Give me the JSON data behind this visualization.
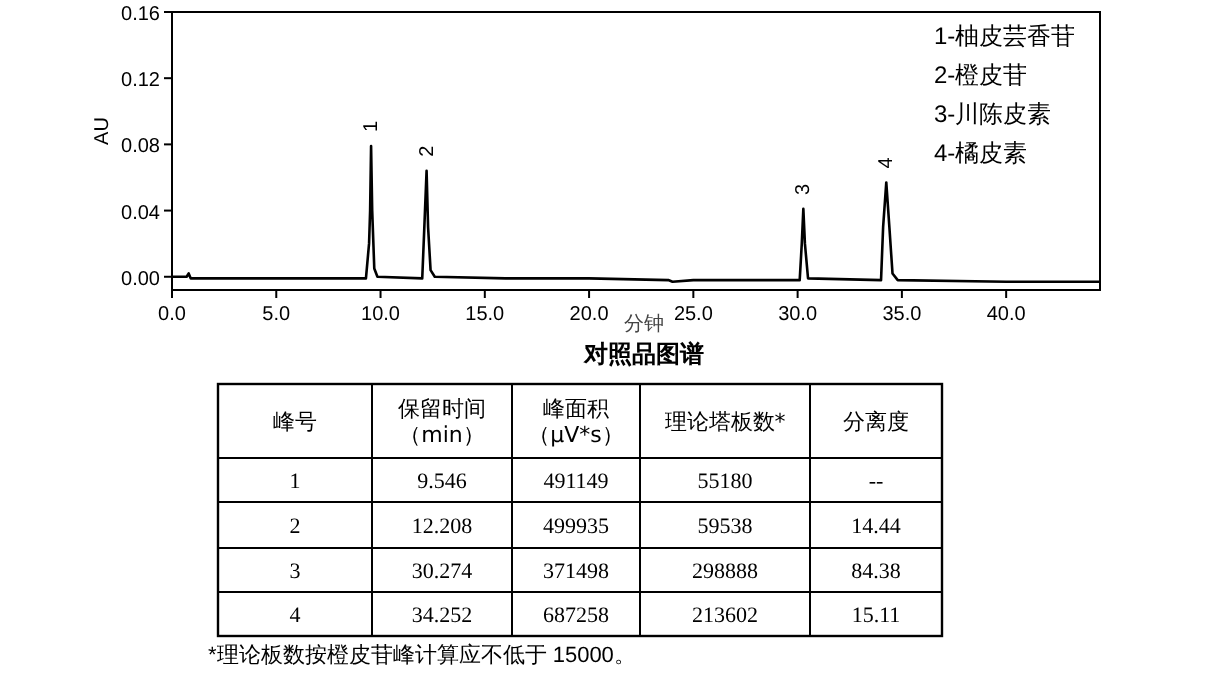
{
  "chart_data": {
    "type": "line",
    "title": "对照品图谱",
    "xlabel": "分钟",
    "ylabel": "AU",
    "x": [
      0,
      0.7,
      0.8,
      0.9,
      5,
      9.3,
      9.45,
      9.5,
      9.546,
      9.6,
      9.7,
      9.85,
      12.0,
      12.1,
      12.208,
      12.28,
      12.4,
      12.6,
      16,
      16.3,
      20,
      23.8,
      24.0,
      25,
      30.1,
      30.2,
      30.274,
      30.35,
      30.5,
      34.0,
      34.1,
      34.252,
      34.4,
      34.55,
      34.8,
      40,
      41,
      44.5
    ],
    "values": [
      0,
      0,
      0.002,
      -0.001,
      -0.001,
      -0.001,
      0.02,
      0.04,
      0.079,
      0.04,
      0.005,
      0,
      -0.001,
      0.03,
      0.064,
      0.03,
      0.004,
      0,
      -0.001,
      -0.001,
      -0.001,
      -0.002,
      -0.003,
      -0.002,
      -0.002,
      0.02,
      0.041,
      0.02,
      -0.001,
      -0.002,
      0.03,
      0.057,
      0.03,
      0.002,
      -0.002,
      -0.003,
      -0.003,
      -0.003
    ],
    "color": "#000000",
    "xlim": [
      0,
      44.5
    ],
    "ylim": [
      -0.008,
      0.16
    ],
    "xticks": [
      {
        "value": 0,
        "label": "0.0"
      },
      {
        "value": 5,
        "label": "5.0"
      },
      {
        "value": 10,
        "label": "10.0"
      },
      {
        "value": 15,
        "label": "15.0"
      },
      {
        "value": 20,
        "label": "20.0"
      },
      {
        "value": 25,
        "label": "25.0"
      },
      {
        "value": 30,
        "label": "30.0"
      },
      {
        "value": 35,
        "label": "35.0"
      },
      {
        "value": 40,
        "label": "40.0"
      }
    ],
    "yticks": [
      {
        "value": 0,
        "label": "0.00"
      },
      {
        "value": 0.04,
        "label": "0.04"
      },
      {
        "value": 0.08,
        "label": "0.08"
      },
      {
        "value": 0.12,
        "label": "0.12"
      },
      {
        "value": 0.16,
        "label": "0.16"
      }
    ],
    "grid": false,
    "marker": "none",
    "line_style": "solid",
    "annotations": [
      "1-柚皮芸香苷",
      "2-橙皮苷",
      "3-川陈皮素",
      "4-橘皮素",
      {
        "text": "1",
        "x": 9.546,
        "y": 0.079
      },
      {
        "text": "2",
        "x": 12.208,
        "y": 0.064
      },
      {
        "text": "3",
        "x": 30.274,
        "y": 0.041
      },
      {
        "text": "4",
        "x": 34.252,
        "y": 0.057
      },
      "峰号",
      "保留时间（min）",
      "峰面积（μV*s）",
      "理论塔板数*",
      "分离度",
      "1",
      "9.546",
      "491149",
      "55180",
      "--",
      "2",
      "12.208",
      "499935",
      "59538",
      "14.44",
      "3",
      "30.274",
      "371498",
      "298888",
      "84.38",
      "4",
      "34.252",
      "687258",
      "213602",
      "15.11",
      "*理论板数按橙皮苷峰计算应不低于 15000。"
    ]
  }
}
